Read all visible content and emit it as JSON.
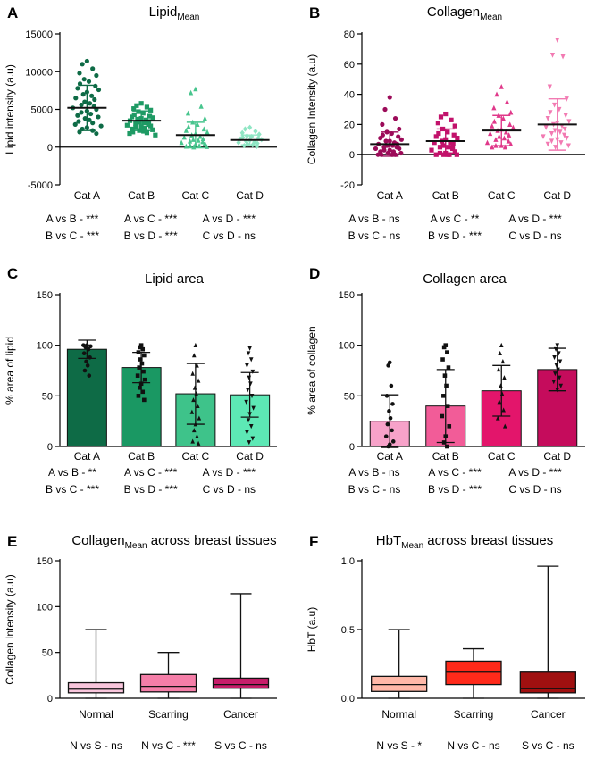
{
  "figure": {
    "colors": {
      "axis": "#000000",
      "greens": [
        "#0e6b46",
        "#1a9863",
        "#3ec38a",
        "#5de8b5"
      ],
      "pinks": [
        "#f7a2c9",
        "#f25c98",
        "#e3156b",
        "#c50c5c"
      ],
      "scatter_collagen": [
        "#9c0b59",
        "#c2126b",
        "#e0388a",
        "#f27ab2"
      ],
      "scatter_lipid": [
        "#0e6b46",
        "#1e9a64",
        "#48c58e",
        "#8fe6c4"
      ],
      "box_collagen": [
        "#f9c6dc",
        "#f57ea8",
        "#c71e6a"
      ],
      "box_hbt": [
        "#ffb8a8",
        "#ff2a1a",
        "#a01010"
      ]
    }
  },
  "chart_data": [
    {
      "panel": "A",
      "type": "scatter",
      "title": "Lipid",
      "title_sub": "Mean",
      "ylabel": "Lipid intensity (a.u)",
      "ylim": [
        -5000,
        15000
      ],
      "yticks": [
        -5000,
        0,
        5000,
        10000,
        15000
      ],
      "categories": [
        "Cat A",
        "Cat B",
        "Cat C",
        "Cat D"
      ],
      "means": [
        5200,
        3500,
        1600,
        950
      ],
      "sd": [
        3000,
        1300,
        1700,
        650
      ],
      "marker": [
        "circle",
        "square",
        "triangle",
        "diamond"
      ],
      "points": [
        [
          11400,
          11000,
          10400,
          9800,
          9500,
          9000,
          8700,
          8400,
          8100,
          7800,
          7600,
          7300,
          7000,
          6800,
          6500,
          6300,
          6000,
          5800,
          5600,
          5400,
          5200,
          5000,
          4800,
          4600,
          4400,
          4200,
          4000,
          3800,
          3600,
          3400,
          3200,
          3000,
          2800,
          2600,
          2400,
          2200,
          2000,
          1800
        ],
        [
          5800,
          5500,
          5300,
          5100,
          4900,
          4700,
          4500,
          4300,
          4100,
          4000,
          3900,
          3800,
          3700,
          3600,
          3500,
          3400,
          3300,
          3200,
          3100,
          3000,
          2900,
          2800,
          2700,
          2600,
          2500,
          2400,
          2300,
          2200,
          2100,
          2000,
          1900,
          1800,
          1600
        ],
        [
          7700,
          7200,
          5400,
          4500,
          3800,
          3300,
          3000,
          2700,
          2400,
          2200,
          2000,
          1800,
          1600,
          1400,
          1300,
          1100,
          1000,
          900,
          800,
          700,
          600,
          500,
          400,
          300,
          200,
          100,
          50,
          0
        ],
        [
          2600,
          2400,
          2100,
          1900,
          1700,
          1500,
          1400,
          1300,
          1200,
          1100,
          1000,
          900,
          800,
          700,
          600,
          500,
          400,
          300,
          200,
          100
        ]
      ],
      "comparisons": [
        [
          "A vs B - ***",
          "B vs C - ***"
        ],
        [
          "A vs C - ***",
          "B vs D - ***"
        ],
        [
          "A vs D - ***",
          "C vs D - ns"
        ]
      ]
    },
    {
      "panel": "B",
      "type": "scatter",
      "title": "Collagen",
      "title_sub": "Mean",
      "ylabel": "Collagen Intensity (a.u)",
      "ylim": [
        -20,
        80
      ],
      "yticks": [
        -20,
        0,
        20,
        40,
        60,
        80
      ],
      "categories": [
        "Cat A",
        "Cat B",
        "Cat C",
        "Cat D"
      ],
      "means": [
        7,
        9,
        16,
        20
      ],
      "sd": [
        8,
        8,
        10,
        17
      ],
      "marker": [
        "circle",
        "square",
        "triangle",
        "triangle-down"
      ],
      "points": [
        [
          38,
          30,
          24,
          20,
          17,
          15,
          14,
          13,
          12,
          11,
          10,
          9,
          9,
          8,
          7,
          7,
          6,
          6,
          5,
          5,
          4,
          4,
          3,
          3,
          2,
          2,
          1,
          1,
          0,
          0,
          0,
          0
        ],
        [
          27,
          25,
          23,
          21,
          19,
          17,
          15,
          14,
          13,
          12,
          11,
          10,
          9,
          8,
          8,
          7,
          6,
          5,
          5,
          4,
          3,
          2,
          1,
          1,
          0,
          0,
          0,
          0,
          0
        ],
        [
          45,
          40,
          35,
          31,
          28,
          26,
          24,
          22,
          20,
          19,
          18,
          17,
          16,
          15,
          14,
          13,
          12,
          11,
          10,
          9,
          8,
          7,
          6,
          6,
          5,
          5
        ],
        [
          76,
          66,
          65,
          45,
          37,
          33,
          30,
          28,
          26,
          24,
          22,
          21,
          20,
          19,
          18,
          17,
          16,
          15,
          14,
          13,
          12,
          11,
          10,
          9,
          8,
          7,
          6,
          5
        ]
      ],
      "comparisons": [
        [
          "A vs B - ns",
          "B vs C - ns"
        ],
        [
          "A vs C - **",
          "B vs D - ***"
        ],
        [
          "A vs D - ***",
          "C vs D - ns"
        ]
      ]
    },
    {
      "panel": "C",
      "type": "bar",
      "title": "Lipid area",
      "ylabel": "% area of lipid",
      "ylim": [
        0,
        150
      ],
      "yticks": [
        0,
        50,
        100,
        150
      ],
      "categories": [
        "Cat A",
        "Cat B",
        "Cat C",
        "Cat D"
      ],
      "values": [
        96,
        78,
        52,
        51
      ],
      "sd": [
        9,
        15,
        30,
        22
      ],
      "marker": [
        "circle",
        "square",
        "triangle",
        "triangle-down"
      ],
      "points": [
        [
          100,
          98,
          96,
          92,
          88,
          84,
          80,
          75,
          70,
          100,
          99
        ],
        [
          100,
          98,
          96,
          93,
          90,
          86,
          82,
          78,
          74,
          70,
          66,
          62,
          58,
          54,
          50,
          46
        ],
        [
          100,
          90,
          80,
          72,
          65,
          58,
          52,
          46,
          40,
          34,
          28,
          22,
          16,
          10,
          5,
          3
        ],
        [
          97,
          92,
          86,
          80,
          74,
          68,
          62,
          56,
          50,
          44,
          38,
          32,
          26,
          20,
          14,
          8,
          4
        ]
      ],
      "comparisons": [
        [
          "A vs B - **",
          "B vs C - ***"
        ],
        [
          "A vs C - ***",
          "B vs D - ***"
        ],
        [
          "A vs D - ***",
          "C vs D - ns"
        ]
      ]
    },
    {
      "panel": "D",
      "type": "bar",
      "title": "Collagen area",
      "ylabel": "% area of collagen",
      "ylim": [
        0,
        150
      ],
      "yticks": [
        0,
        50,
        100,
        150
      ],
      "categories": [
        "Cat A",
        "Cat B",
        "Cat C",
        "Cat D"
      ],
      "values": [
        25,
        40,
        55,
        76
      ],
      "sd": [
        26,
        36,
        25,
        21
      ],
      "marker": [
        "circle",
        "square",
        "triangle",
        "triangle-down"
      ],
      "points": [
        [
          83,
          80,
          60,
          50,
          42,
          35,
          28,
          22,
          16,
          10,
          5,
          2,
          0
        ],
        [
          100,
          98,
          93,
          86,
          78,
          70,
          60,
          50,
          40,
          30,
          20,
          10,
          4,
          0
        ],
        [
          100,
          92,
          84,
          76,
          68,
          60,
          52,
          44,
          36,
          28,
          20
        ],
        [
          100,
          96,
          92,
          88,
          84,
          80,
          76,
          72,
          68,
          64,
          60,
          56
        ]
      ],
      "comparisons": [
        [
          "A vs B - ns",
          "B vs C - ns"
        ],
        [
          "A vs C - ***",
          "B vs D - ***"
        ],
        [
          "A vs D - ***",
          "C vs D - ns"
        ]
      ]
    },
    {
      "panel": "E",
      "type": "box",
      "title": "Collagen",
      "title_sub": "Mean",
      "title_rest": " across breast tissues",
      "ylabel": "Collagen Intensity (a.u)",
      "ylim": [
        0,
        150
      ],
      "yticks": [
        0,
        50,
        100,
        150
      ],
      "categories": [
        "Normal",
        "Scarring",
        "Cancer"
      ],
      "boxes": [
        {
          "min": 0,
          "q1": 6,
          "median": 10,
          "q3": 17,
          "max": 75
        },
        {
          "min": 0,
          "q1": 7,
          "median": 13,
          "q3": 26,
          "max": 50
        },
        {
          "min": 0,
          "q1": 11,
          "median": 15,
          "q3": 22,
          "max": 114
        }
      ],
      "comparisons": [
        "N vs S - ns",
        "N vs C - ***",
        "S vs C - ns"
      ]
    },
    {
      "panel": "F",
      "type": "box",
      "title": "HbT",
      "title_sub": "Mean",
      "title_rest": " across breast tissues",
      "ylabel": "HbT (a.u)",
      "ylim": [
        0,
        1.0
      ],
      "yticks": [
        0.0,
        0.5,
        1.0
      ],
      "ytick_labels": [
        "0.0",
        "0.5",
        "1.0"
      ],
      "categories": [
        "Normal",
        "Scarring",
        "Cancer"
      ],
      "boxes": [
        {
          "min": 0.0,
          "q1": 0.05,
          "median": 0.1,
          "q3": 0.16,
          "max": 0.5
        },
        {
          "min": 0.0,
          "q1": 0.1,
          "median": 0.19,
          "q3": 0.27,
          "max": 0.36
        },
        {
          "min": 0.0,
          "q1": 0.04,
          "median": 0.07,
          "q3": 0.19,
          "max": 0.96
        }
      ],
      "comparisons": [
        "N vs S - *",
        "N vs C - ns",
        "S vs C - ns"
      ]
    }
  ]
}
